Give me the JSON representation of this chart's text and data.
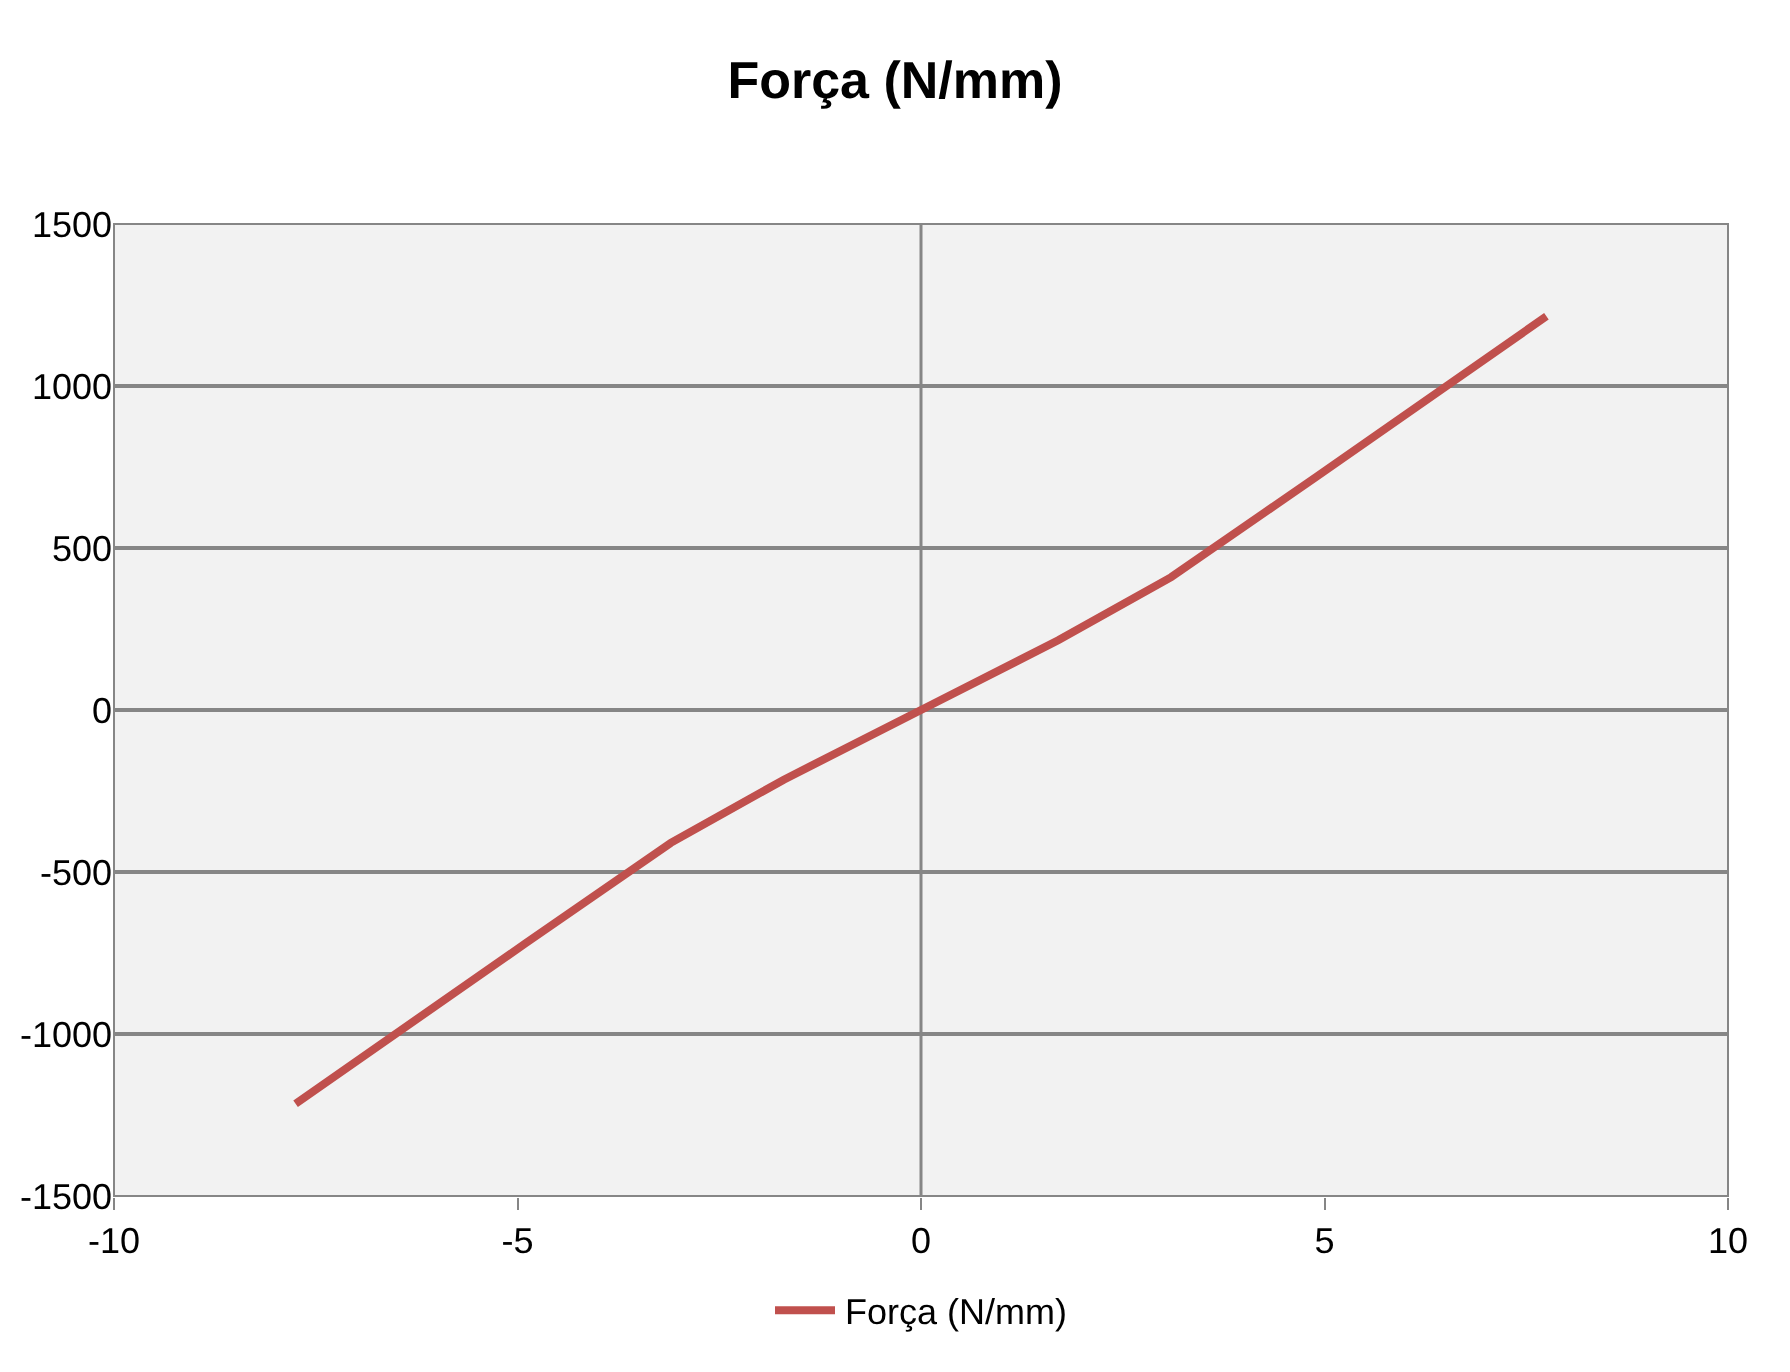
{
  "chart_data": {
    "type": "line",
    "title": "Força (N/mm)",
    "x": [
      -7.75,
      -4.9,
      -3.1,
      -1.7,
      0,
      1.7,
      3.1,
      4.9,
      7.75
    ],
    "series": [
      {
        "name": "Força (N/mm)",
        "color": "#c0504d",
        "values": [
          -1215,
          -720,
          -410,
          -215,
          0,
          215,
          410,
          720,
          1215
        ]
      }
    ],
    "xlim": [
      -10,
      10
    ],
    "xticks": [
      -10,
      -5,
      0,
      5,
      10
    ],
    "ylim": [
      -1500,
      1500
    ],
    "yticks": [
      -1500,
      -1000,
      -500,
      0,
      500,
      1000,
      1500
    ],
    "grid": "y",
    "legend": "bottom",
    "marker": "none",
    "line_style": "solid"
  }
}
